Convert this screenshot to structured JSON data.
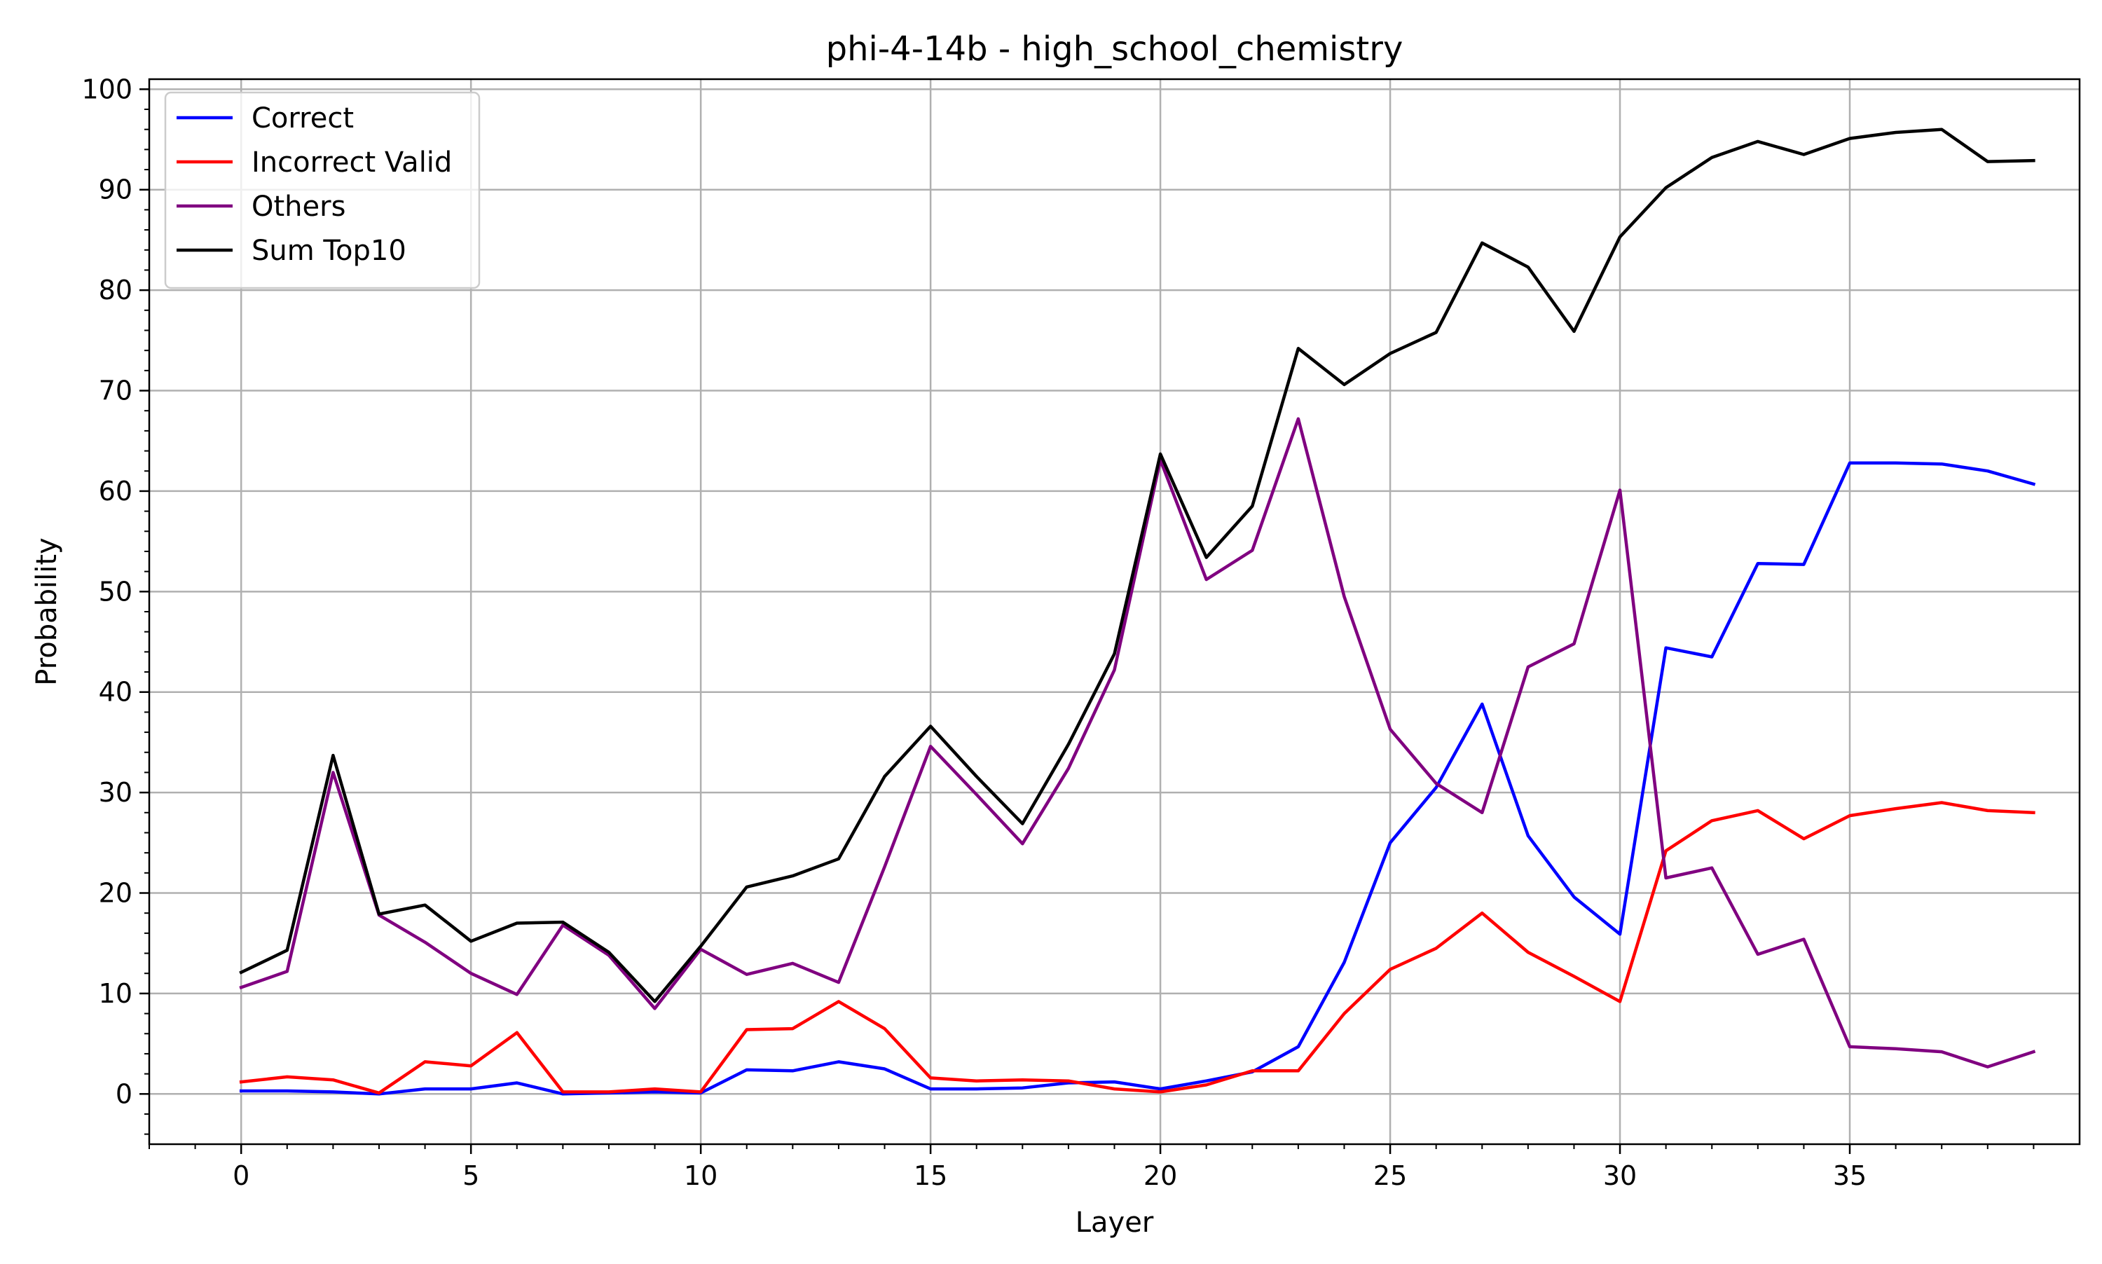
{
  "chart_data": {
    "type": "line",
    "title": "phi-4-14b - high_school_chemistry",
    "xlabel": "Layer",
    "ylabel": "Probability",
    "xlim": [
      -2,
      40
    ],
    "ylim": [
      -5,
      101
    ],
    "x_ticks": [
      0,
      5,
      10,
      15,
      20,
      25,
      30,
      35
    ],
    "y_ticks": [
      0,
      10,
      20,
      30,
      40,
      50,
      60,
      70,
      80,
      90,
      100
    ],
    "grid": true,
    "legend_position": "top-left",
    "x": [
      0,
      1,
      2,
      3,
      4,
      5,
      6,
      7,
      8,
      9,
      10,
      11,
      12,
      13,
      14,
      15,
      16,
      17,
      18,
      19,
      20,
      21,
      22,
      23,
      24,
      25,
      26,
      27,
      28,
      29,
      30,
      31,
      32,
      33,
      34,
      35,
      36,
      37,
      38,
      39
    ],
    "series": [
      {
        "name": "Correct",
        "color": "#0000ff",
        "values": [
          0.3,
          0.3,
          0.2,
          0.0,
          0.5,
          0.5,
          1.1,
          0.0,
          0.1,
          0.2,
          0.1,
          2.4,
          2.3,
          3.2,
          2.5,
          0.5,
          0.5,
          0.6,
          1.1,
          1.2,
          0.5,
          1.3,
          2.2,
          4.7,
          13.1,
          25.0,
          30.5,
          38.8,
          25.7,
          19.6,
          15.9,
          44.4,
          43.5,
          52.8,
          52.7,
          62.8,
          62.8,
          62.7,
          62.0,
          60.7
        ]
      },
      {
        "name": "Incorrect Valid",
        "color": "#ff0000",
        "values": [
          1.2,
          1.7,
          1.4,
          0.1,
          3.2,
          2.8,
          6.1,
          0.2,
          0.2,
          0.5,
          0.2,
          6.4,
          6.5,
          9.2,
          6.5,
          1.6,
          1.3,
          1.4,
          1.3,
          0.5,
          0.2,
          0.9,
          2.3,
          2.3,
          8.0,
          12.4,
          14.5,
          18.0,
          14.1,
          11.7,
          9.2,
          24.2,
          27.2,
          28.2,
          25.4,
          27.7,
          28.4,
          29.0,
          28.2,
          28.0
        ]
      },
      {
        "name": "Others",
        "color": "#800080",
        "values": [
          10.6,
          12.2,
          32.0,
          17.8,
          15.1,
          12.0,
          9.9,
          16.8,
          13.8,
          8.5,
          14.4,
          11.9,
          13.0,
          11.1,
          22.6,
          34.6,
          29.8,
          24.9,
          32.4,
          42.2,
          63.1,
          51.2,
          54.1,
          67.2,
          49.5,
          36.3,
          30.9,
          28.0,
          42.5,
          44.8,
          60.1,
          21.5,
          22.5,
          13.9,
          15.4,
          4.7,
          4.5,
          4.2,
          2.7,
          4.2
        ]
      },
      {
        "name": "Sum Top10",
        "color": "#000000",
        "values": [
          12.1,
          14.3,
          33.7,
          17.9,
          18.8,
          15.2,
          17.0,
          17.1,
          14.1,
          9.2,
          14.7,
          20.6,
          21.7,
          23.4,
          31.6,
          36.6,
          31.6,
          26.9,
          34.8,
          43.8,
          63.7,
          53.4,
          58.5,
          74.2,
          70.6,
          73.7,
          75.8,
          84.7,
          82.3,
          75.9,
          85.3,
          90.2,
          93.2,
          94.8,
          93.5,
          95.1,
          95.7,
          96.0,
          92.8,
          92.9
        ]
      }
    ]
  }
}
